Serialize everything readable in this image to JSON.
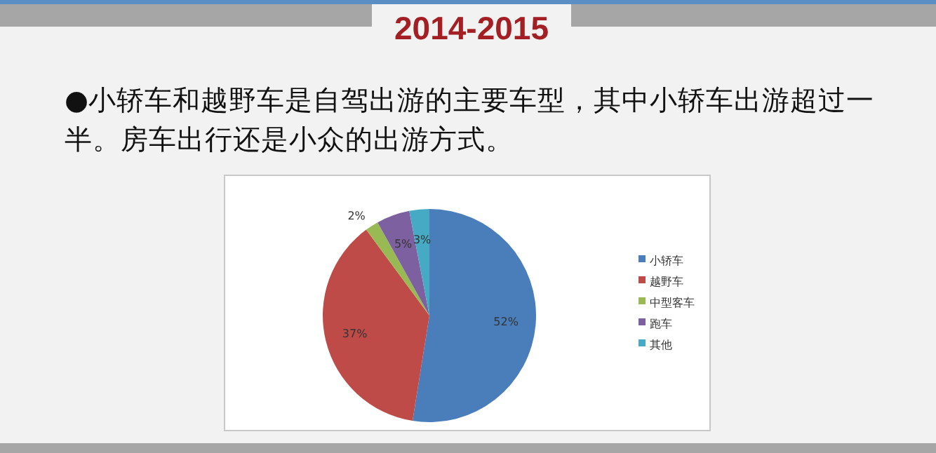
{
  "chart_data": {
    "type": "pie",
    "title": "2014-2015",
    "subtitle": "●小轿车和越野车是自驾出游的主要车型，其中小轿车出游超过一半。房车出行还是小众的出游方式。",
    "categories": [
      "小轿车",
      "越野车",
      "中型客车",
      "跑车",
      "其他"
    ],
    "values": [
      52,
      37,
      2,
      5,
      3
    ],
    "value_labels": [
      "52%",
      "37%",
      "2%",
      "5%",
      "3%"
    ],
    "colors": [
      "#4a7ebb",
      "#be4b48",
      "#98b954",
      "#7d60a0",
      "#46aac5"
    ],
    "legend": "right"
  }
}
